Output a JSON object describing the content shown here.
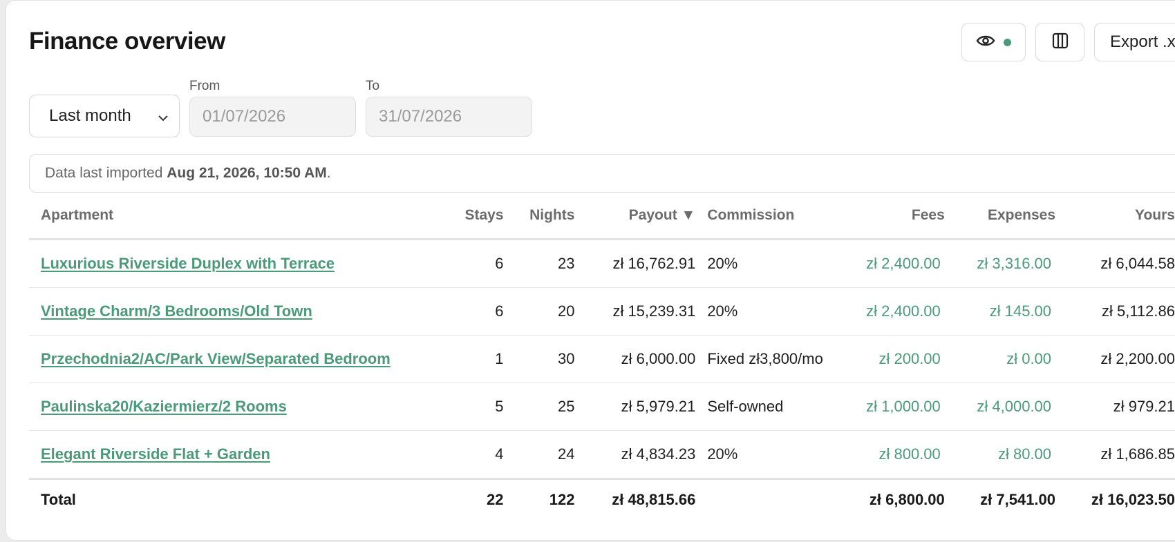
{
  "page": {
    "title": "Finance overview",
    "accent_color": "#4b9a7a",
    "toolbar": {
      "visibility_icon": "eye-icon",
      "columns_icon": "columns-icon",
      "export_label": "Export .xl"
    },
    "filters": {
      "period_selected": "Last month",
      "from_label": "From",
      "from_value": "01/07/2026",
      "to_label": "To",
      "to_value": "31/07/2026"
    },
    "import_notice": {
      "prefix": "Data last imported ",
      "timestamp": "Aug 21, 2026, 10:50 AM",
      "suffix": "."
    }
  },
  "table": {
    "headers": {
      "apartment": "Apartment",
      "stays": "Stays",
      "nights": "Nights",
      "payout": "Payout ▼",
      "commission": "Commission",
      "fees": "Fees",
      "expenses": "Expenses",
      "yours": "Yours"
    },
    "rows": [
      {
        "apartment": "Luxurious Riverside Duplex with Terrace",
        "stays": "6",
        "nights": "23",
        "payout": "zł 16,762.91",
        "commission": "20%",
        "fees": "zł 2,400.00",
        "expenses": "zł 3,316.00",
        "yours": "zł 6,044.58"
      },
      {
        "apartment": "Vintage Charm/3 Bedrooms/Old Town",
        "stays": "6",
        "nights": "20",
        "payout": "zł 15,239.31",
        "commission": "20%",
        "fees": "zł 2,400.00",
        "expenses": "zł 145.00",
        "yours": "zł 5,112.86"
      },
      {
        "apartment": "Przechodnia2/AC/Park View/Separated Bedroom",
        "stays": "1",
        "nights": "30",
        "payout": "zł 6,000.00",
        "commission": "Fixed zł3,800/mo",
        "fees": "zł 200.00",
        "expenses": "zł 0.00",
        "yours": "zł 2,200.00"
      },
      {
        "apartment": "Paulinska20/Kaziermierz/2 Rooms",
        "stays": "5",
        "nights": "25",
        "payout": "zł 5,979.21",
        "commission": "Self-owned",
        "fees": "zł 1,000.00",
        "expenses": "zł 4,000.00",
        "yours": "zł 979.21"
      },
      {
        "apartment": "Elegant Riverside Flat + Garden",
        "stays": "4",
        "nights": "24",
        "payout": "zł 4,834.23",
        "commission": "20%",
        "fees": "zł 800.00",
        "expenses": "zł 80.00",
        "yours": "zł 1,686.85"
      }
    ],
    "total": {
      "label": "Total",
      "stays": "22",
      "nights": "122",
      "payout": "zł 48,815.66",
      "commission": "",
      "fees": "zł 6,800.00",
      "expenses": "zł 7,541.00",
      "yours": "zł 16,023.50"
    }
  }
}
